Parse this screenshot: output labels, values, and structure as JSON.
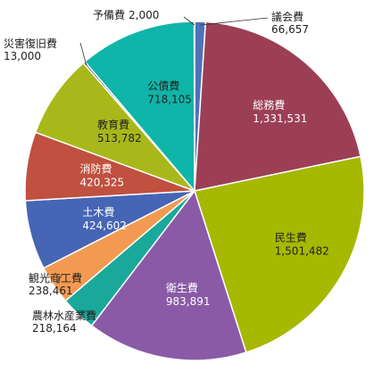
{
  "chart_data": {
    "type": "pie",
    "start_angle_deg": 0,
    "direction": "clockwise",
    "slices": [
      {
        "name": "議会費",
        "value": 66657,
        "value_label": "66,657",
        "color": "#4e72b8",
        "label_mode": "outside",
        "text_color": "#222222"
      },
      {
        "name": "総務費",
        "value": 1331531,
        "value_label": "1,331,531",
        "color": "#9c3f55",
        "label_mode": "inside",
        "text_color": "#ffffff"
      },
      {
        "name": "民生費",
        "value": 1501482,
        "value_label": "1,501,482",
        "color": "#a6b800",
        "label_mode": "inside",
        "text_color": "#222222"
      },
      {
        "name": "衛生費",
        "value": 983891,
        "value_label": "983,891",
        "color": "#8a5aa6",
        "label_mode": "inside",
        "text_color": "#ffffff"
      },
      {
        "name": "農林水産業費",
        "value": 218164,
        "value_label": "218,164",
        "color": "#1aa89a",
        "label_mode": "outside",
        "text_color": "#222222"
      },
      {
        "name": "観光商工費",
        "value": 238461,
        "value_label": "238,461",
        "color": "#f39a52",
        "label_mode": "outside",
        "text_color": "#222222"
      },
      {
        "name": "土木費",
        "value": 424602,
        "value_label": "424,602",
        "color": "#4665b5",
        "label_mode": "inside",
        "text_color": "#ffffff"
      },
      {
        "name": "消防費",
        "value": 420325,
        "value_label": "420,325",
        "color": "#c0503f",
        "label_mode": "inside",
        "text_color": "#ffffff"
      },
      {
        "name": "教育費",
        "value": 513782,
        "value_label": "513,782",
        "color": "#a8b81a",
        "label_mode": "inside",
        "text_color": "#222222"
      },
      {
        "name": "災害復旧費",
        "value": 13000,
        "value_label": "13,000",
        "color": "#2b3f86",
        "label_mode": "outside",
        "text_color": "#222222"
      },
      {
        "name": "公債費",
        "value": 718105,
        "value_label": "718,105",
        "color": "#0fb5a8",
        "label_mode": "inside",
        "text_color": "#222222"
      },
      {
        "name": "予備費",
        "value": 2000,
        "value_label": "2,000",
        "color": "#4e72b8",
        "label_mode": "outside",
        "text_color": "#222222"
      }
    ]
  }
}
